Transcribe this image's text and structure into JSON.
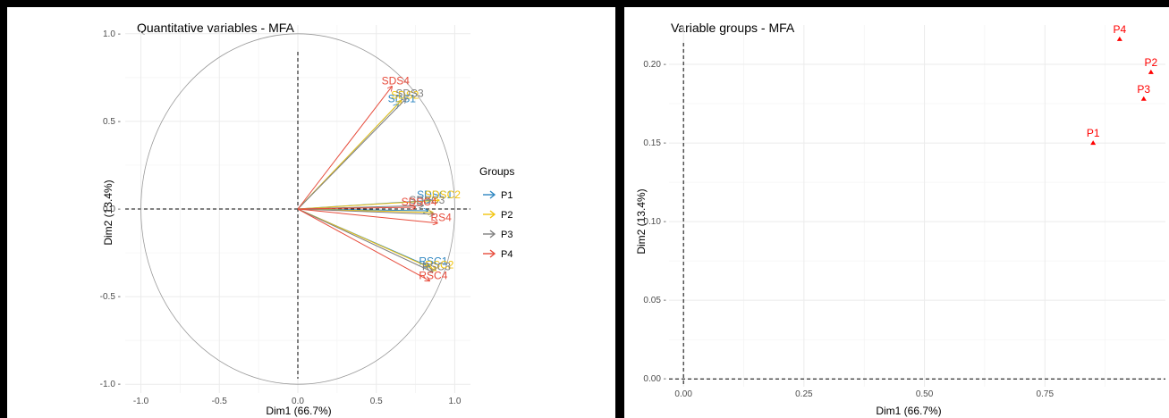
{
  "chart_data": [
    {
      "type": "scatter",
      "subtype": "correlation-circle",
      "title": "Quantitative variables - MFA",
      "xlabel": "Dim1 (66.7%)",
      "ylabel": "Dim2 (13.4%)",
      "xlim": [
        -1.1,
        1.1
      ],
      "ylim": [
        -1.05,
        1.05
      ],
      "xticks": [
        -1.0,
        -0.5,
        0.0,
        0.5,
        1.0
      ],
      "yticks": [
        -1.0,
        -0.5,
        0.0,
        0.5,
        1.0
      ],
      "xtick_labels": [
        "-1.0",
        "-0.5",
        "0.0",
        "0.5",
        "1.0"
      ],
      "ytick_labels": [
        "-1.0",
        "-0.5",
        "0.0",
        "0.5",
        "1.0"
      ],
      "grid": true,
      "legend": {
        "title": "Groups",
        "position": "right",
        "entries": [
          {
            "name": "P1",
            "color": "#2E86C1"
          },
          {
            "name": "P2",
            "color": "#F1C40F"
          },
          {
            "name": "P3",
            "color": "#7F7F7F"
          },
          {
            "name": "P4",
            "color": "#E74C3C"
          }
        ]
      },
      "series": [
        {
          "name": "P1",
          "color": "#2E86C1",
          "variables": [
            {
              "label": "SDS1",
              "x": 0.64,
              "y": 0.6
            },
            {
              "label": "SDSC1",
              "x": 0.85,
              "y": 0.05
            },
            {
              "label": "",
              "x": 0.83,
              "y": -0.01
            },
            {
              "label": "RSC1",
              "x": 0.84,
              "y": -0.33
            }
          ]
        },
        {
          "name": "P2",
          "color": "#F1C40F",
          "variables": [
            {
              "label": "SDS2",
              "x": 0.66,
              "y": 0.62
            },
            {
              "label": "SDSC2",
              "x": 0.9,
              "y": 0.05
            },
            {
              "label": "",
              "x": 0.86,
              "y": -0.02
            },
            {
              "label": "RSC2",
              "x": 0.88,
              "y": -0.35
            }
          ]
        },
        {
          "name": "P3",
          "color": "#7F7F7F",
          "variables": [
            {
              "label": "SDS3",
              "x": 0.69,
              "y": 0.63
            },
            {
              "label": "SDSC3",
              "x": 0.8,
              "y": 0.02
            },
            {
              "label": "",
              "x": 0.87,
              "y": -0.03
            },
            {
              "label": "RSC3",
              "x": 0.86,
              "y": -0.36
            }
          ]
        },
        {
          "name": "P4",
          "color": "#E74C3C",
          "variables": [
            {
              "label": "SDS4",
              "x": 0.6,
              "y": 0.7
            },
            {
              "label": "SDSC4",
              "x": 0.75,
              "y": 0.01
            },
            {
              "label": "RS4",
              "x": 0.89,
              "y": -0.08
            },
            {
              "label": "RSC4",
              "x": 0.84,
              "y": -0.41
            }
          ]
        }
      ]
    },
    {
      "type": "scatter",
      "title": "Variable groups - MFA",
      "xlabel": "Dim1 (66.7%)",
      "ylabel": "Dim2 (13.4%)",
      "xlim": [
        -0.03,
        1.0
      ],
      "ylim": [
        -0.005,
        0.225
      ],
      "xticks": [
        0.0,
        0.25,
        0.5,
        0.75
      ],
      "yticks": [
        0.0,
        0.05,
        0.1,
        0.15,
        0.2
      ],
      "xtick_labels": [
        "0.00",
        "0.25",
        "0.50",
        "0.75"
      ],
      "ytick_labels": [
        "0.00 -",
        "0.05 -",
        "0.10 -",
        "0.15 -",
        "0.20 -"
      ],
      "grid": true,
      "marker_color": "#FF0000",
      "points": [
        {
          "label": "P1",
          "x": 0.85,
          "y": 0.15
        },
        {
          "label": "P2",
          "x": 0.97,
          "y": 0.195
        },
        {
          "label": "P3",
          "x": 0.955,
          "y": 0.178
        },
        {
          "label": "P4",
          "x": 0.905,
          "y": 0.216
        }
      ]
    }
  ]
}
